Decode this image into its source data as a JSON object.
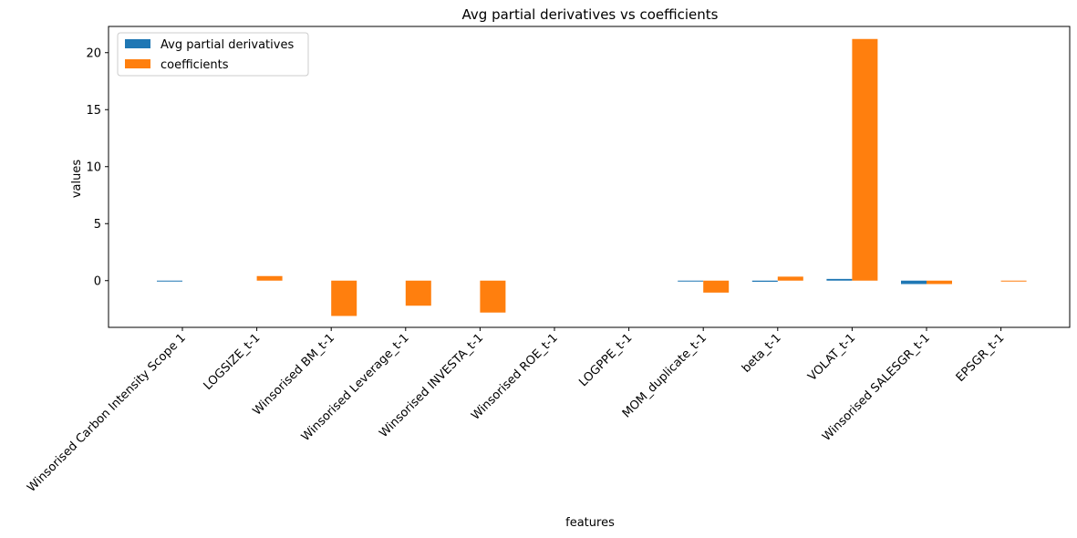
{
  "chart_data": {
    "type": "bar",
    "title": "Avg partial derivatives vs coefficients",
    "xlabel": "features",
    "ylabel": "values",
    "ylim": [
      -4.1,
      22.3
    ],
    "yticks": [
      0,
      5,
      10,
      15,
      20
    ],
    "legend_position": "upper-left",
    "categories": [
      "Winsorised Carbon Intensity Scope 1",
      "LOGSIZE_t-1",
      "Winsorised BM_t-1",
      "Winsorised Leverage_t-1",
      "Winsorised INVESTA_t-1",
      "Winsorised ROE_t-1",
      "LOGPPE_t-1",
      "MOM_duplicate_t-1",
      "beta_t-1",
      "VOLAT_t-1",
      "Winsorised SALESGR_t-1",
      "EPSGR_t-1"
    ],
    "series": [
      {
        "name": "Avg partial derivatives",
        "color": "#1f77b4",
        "values": [
          -0.08,
          0.0,
          0.0,
          0.0,
          0.0,
          0.0,
          0.0,
          -0.05,
          -0.1,
          0.15,
          -0.3,
          0.0
        ]
      },
      {
        "name": "coefficients",
        "color": "#ff7f0e",
        "values": [
          0.0,
          0.4,
          -3.1,
          -2.2,
          -2.8,
          0.0,
          0.0,
          -1.05,
          0.35,
          21.2,
          -0.3,
          -0.05
        ]
      }
    ]
  }
}
